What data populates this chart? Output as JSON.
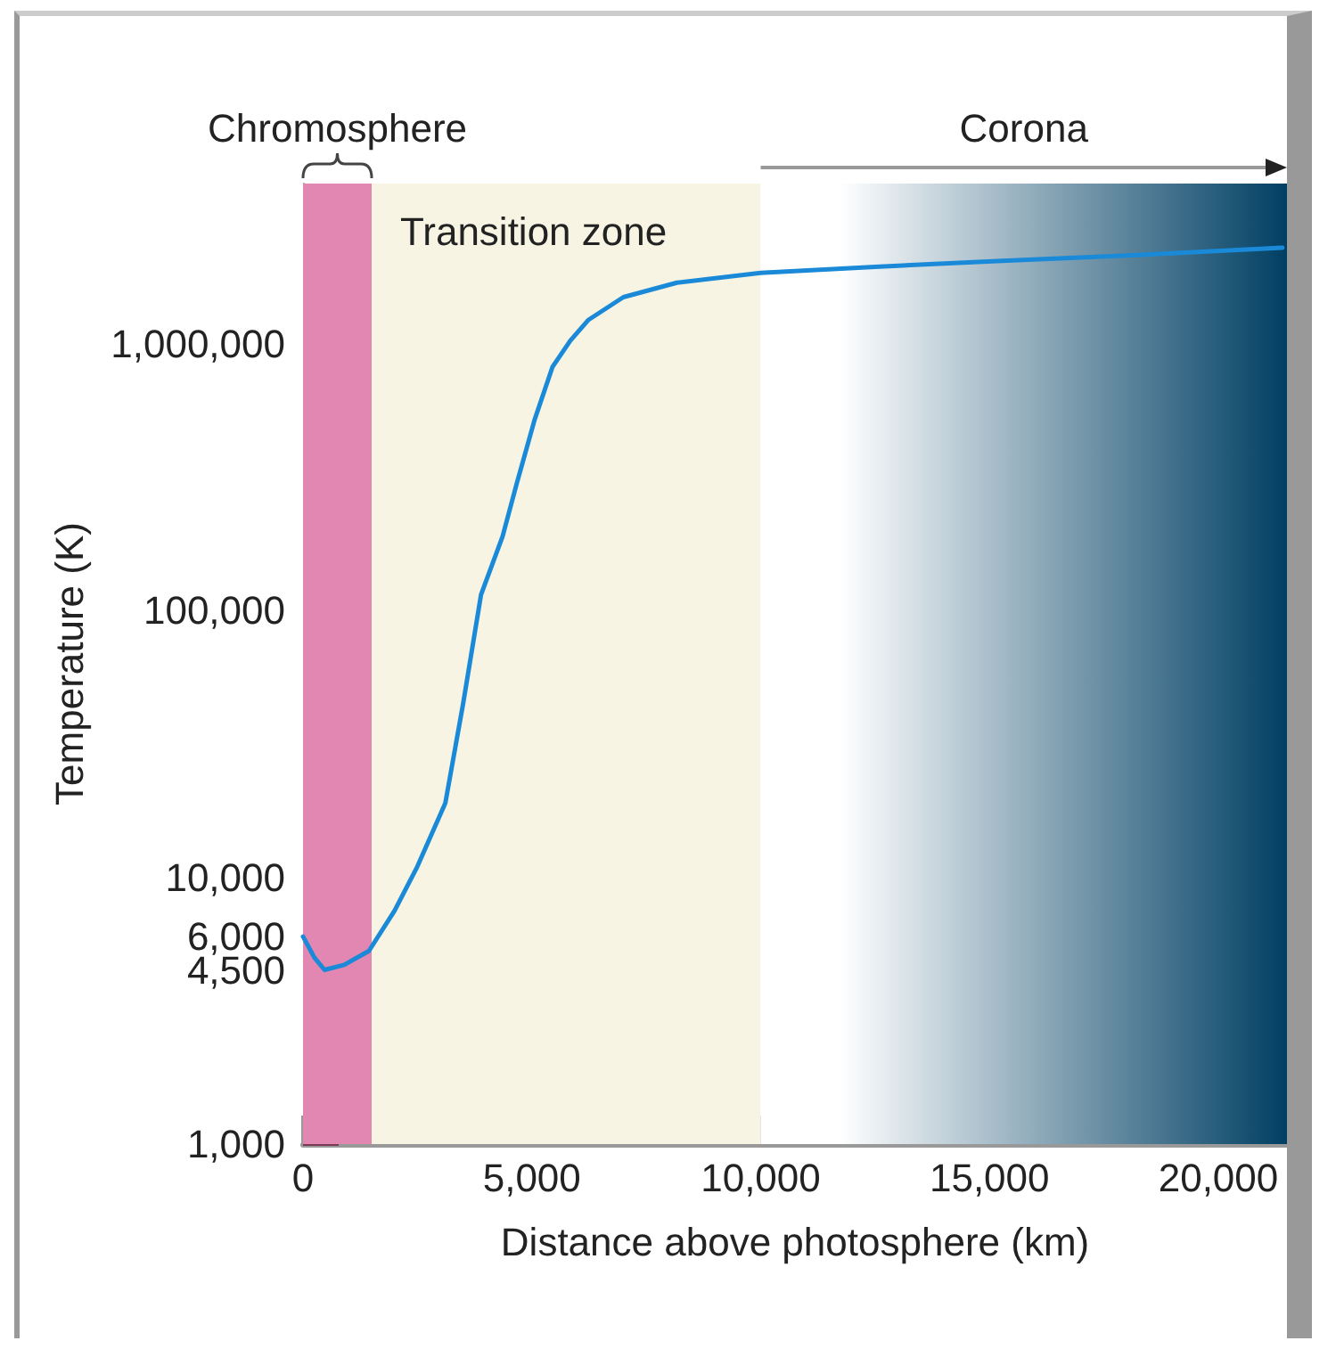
{
  "chart_data": {
    "type": "line",
    "xlabel": "Distance above photosphere (km)",
    "ylabel": "Temperature (K)",
    "x": [
      0,
      250,
      470,
      900,
      1440,
      2000,
      2500,
      3110,
      3500,
      3890,
      4360,
      4670,
      5060,
      5450,
      5840,
      6230,
      7000,
      8170,
      10000,
      12500,
      15170,
      18000,
      21400
    ],
    "series": [
      {
        "color": "#1a8ad8",
        "values": [
          6000,
          5000,
          4500,
          4700,
          5300,
          7500,
          11000,
          19000,
          45000,
          115000,
          190000,
          300000,
          520000,
          820000,
          1030000,
          1230000,
          1500000,
          1700000,
          1850000,
          1950000,
          2050000,
          2150000,
          2300000
        ]
      }
    ],
    "xlim": [
      0,
      21500
    ],
    "xticks": [
      0,
      {
        "value": 5000,
        "label": "5,000"
      },
      {
        "value": 10000,
        "label": "10,000"
      },
      {
        "value": 15000,
        "label": "15,000"
      },
      {
        "value": 20000,
        "label": "20,000"
      }
    ],
    "ylim": [
      1000,
      4000000
    ],
    "log": "y",
    "yticks": [
      {
        "value": 1000,
        "label": "1,000"
      },
      {
        "value": 4500,
        "label": "4,500"
      },
      {
        "value": 6000,
        "label": "6,000"
      },
      {
        "value": 10000,
        "label": "10,000"
      },
      {
        "value": 100000,
        "label": "100,000"
      },
      {
        "value": 1000000,
        "label": "1,000,000"
      }
    ],
    "bands": [
      {
        "axis": "x",
        "from": 0,
        "to": 1500,
        "label": "Chromosphere",
        "color": "#e287b1"
      },
      {
        "axis": "x",
        "from": 1500,
        "to": 10000,
        "label": "Transition zone",
        "color": "#f8f4e4"
      },
      {
        "axis": "x",
        "from": 10000,
        "to": 21500,
        "label": "Corona",
        "color": "#003f63"
      }
    ],
    "grid": false,
    "marker": "none",
    "line_style": "solid"
  }
}
